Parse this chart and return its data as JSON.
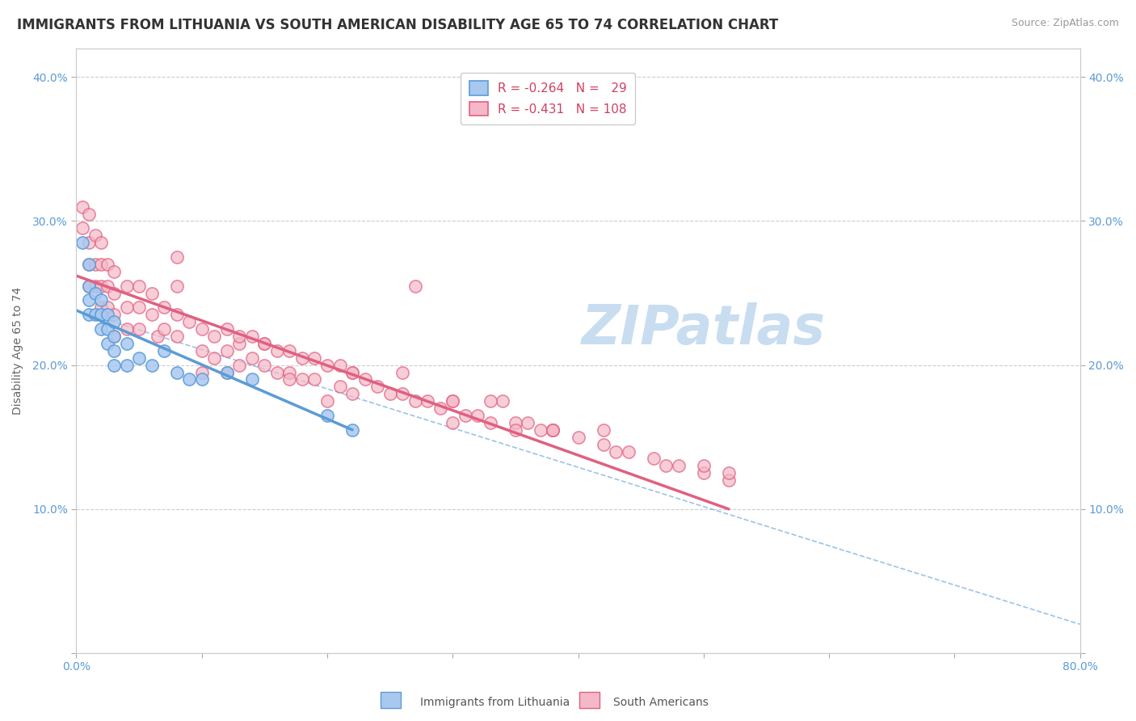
{
  "title": "IMMIGRANTS FROM LITHUANIA VS SOUTH AMERICAN DISABILITY AGE 65 TO 74 CORRELATION CHART",
  "source_text": "Source: ZipAtlas.com",
  "ylabel": "Disability Age 65 to 74",
  "xlim": [
    0.0,
    0.8
  ],
  "ylim": [
    0.0,
    0.42
  ],
  "xtick_vals": [
    0.0,
    0.1,
    0.2,
    0.3,
    0.4,
    0.5,
    0.6,
    0.7,
    0.8
  ],
  "xtick_labels": [
    "0.0%",
    "",
    "",
    "",
    "",
    "",
    "",
    "",
    "80.0%"
  ],
  "ytick_vals": [
    0.0,
    0.1,
    0.2,
    0.3,
    0.4
  ],
  "ytick_labels": [
    "",
    "10.0%",
    "20.0%",
    "30.0%",
    "40.0%"
  ],
  "color_blue": "#a8c8f0",
  "color_pink": "#f5b8c8",
  "color_blue_line": "#5b9bd5",
  "color_pink_line": "#e06080",
  "watermark_text": "ZIPatlas",
  "blue_scatter_x": [
    0.005,
    0.01,
    0.01,
    0.01,
    0.01,
    0.015,
    0.015,
    0.02,
    0.02,
    0.02,
    0.025,
    0.025,
    0.025,
    0.03,
    0.03,
    0.03,
    0.03,
    0.04,
    0.04,
    0.05,
    0.06,
    0.07,
    0.08,
    0.09,
    0.1,
    0.12,
    0.14,
    0.2,
    0.22
  ],
  "blue_scatter_y": [
    0.285,
    0.27,
    0.255,
    0.245,
    0.235,
    0.25,
    0.235,
    0.245,
    0.235,
    0.225,
    0.235,
    0.225,
    0.215,
    0.23,
    0.22,
    0.21,
    0.2,
    0.215,
    0.2,
    0.205,
    0.2,
    0.21,
    0.195,
    0.19,
    0.19,
    0.195,
    0.19,
    0.165,
    0.155
  ],
  "pink_scatter_x": [
    0.005,
    0.005,
    0.01,
    0.01,
    0.01,
    0.01,
    0.015,
    0.015,
    0.015,
    0.02,
    0.02,
    0.02,
    0.02,
    0.025,
    0.025,
    0.025,
    0.03,
    0.03,
    0.03,
    0.03,
    0.04,
    0.04,
    0.04,
    0.05,
    0.05,
    0.05,
    0.06,
    0.06,
    0.065,
    0.07,
    0.07,
    0.08,
    0.08,
    0.09,
    0.1,
    0.1,
    0.1,
    0.11,
    0.11,
    0.12,
    0.12,
    0.12,
    0.13,
    0.13,
    0.14,
    0.14,
    0.15,
    0.15,
    0.16,
    0.16,
    0.17,
    0.17,
    0.18,
    0.18,
    0.19,
    0.19,
    0.2,
    0.21,
    0.21,
    0.22,
    0.22,
    0.23,
    0.24,
    0.25,
    0.26,
    0.27,
    0.28,
    0.29,
    0.3,
    0.31,
    0.32,
    0.33,
    0.35,
    0.37,
    0.38,
    0.4,
    0.42,
    0.44,
    0.46,
    0.47,
    0.48,
    0.5,
    0.52,
    0.36,
    0.27,
    0.34,
    0.38,
    0.08,
    0.13,
    0.17,
    0.2,
    0.3,
    0.35,
    0.43,
    0.52,
    0.08,
    0.15,
    0.22,
    0.3,
    0.38,
    0.26,
    0.33,
    0.42,
    0.5
  ],
  "pink_scatter_y": [
    0.31,
    0.295,
    0.305,
    0.285,
    0.27,
    0.255,
    0.29,
    0.27,
    0.255,
    0.285,
    0.27,
    0.255,
    0.24,
    0.27,
    0.255,
    0.24,
    0.265,
    0.25,
    0.235,
    0.22,
    0.255,
    0.24,
    0.225,
    0.255,
    0.24,
    0.225,
    0.25,
    0.235,
    0.22,
    0.24,
    0.225,
    0.235,
    0.22,
    0.23,
    0.225,
    0.21,
    0.195,
    0.22,
    0.205,
    0.225,
    0.21,
    0.195,
    0.215,
    0.2,
    0.22,
    0.205,
    0.215,
    0.2,
    0.21,
    0.195,
    0.21,
    0.195,
    0.205,
    0.19,
    0.205,
    0.19,
    0.2,
    0.2,
    0.185,
    0.195,
    0.18,
    0.19,
    0.185,
    0.18,
    0.18,
    0.175,
    0.175,
    0.17,
    0.175,
    0.165,
    0.165,
    0.16,
    0.16,
    0.155,
    0.155,
    0.15,
    0.145,
    0.14,
    0.135,
    0.13,
    0.13,
    0.125,
    0.12,
    0.16,
    0.255,
    0.175,
    0.155,
    0.275,
    0.22,
    0.19,
    0.175,
    0.16,
    0.155,
    0.14,
    0.125,
    0.255,
    0.215,
    0.195,
    0.175,
    0.155,
    0.195,
    0.175,
    0.155,
    0.13
  ],
  "blue_line_x": [
    0.0,
    0.22
  ],
  "blue_line_y": [
    0.238,
    0.155
  ],
  "pink_line_x": [
    0.0,
    0.52
  ],
  "pink_line_y": [
    0.262,
    0.1
  ],
  "dashed_line_x": [
    0.0,
    0.8
  ],
  "dashed_line_y": [
    0.238,
    0.02
  ],
  "title_fontsize": 12,
  "tick_fontsize": 10,
  "watermark_fontsize": 48,
  "watermark_color": "#c8ddf0",
  "scatter_size": 120
}
